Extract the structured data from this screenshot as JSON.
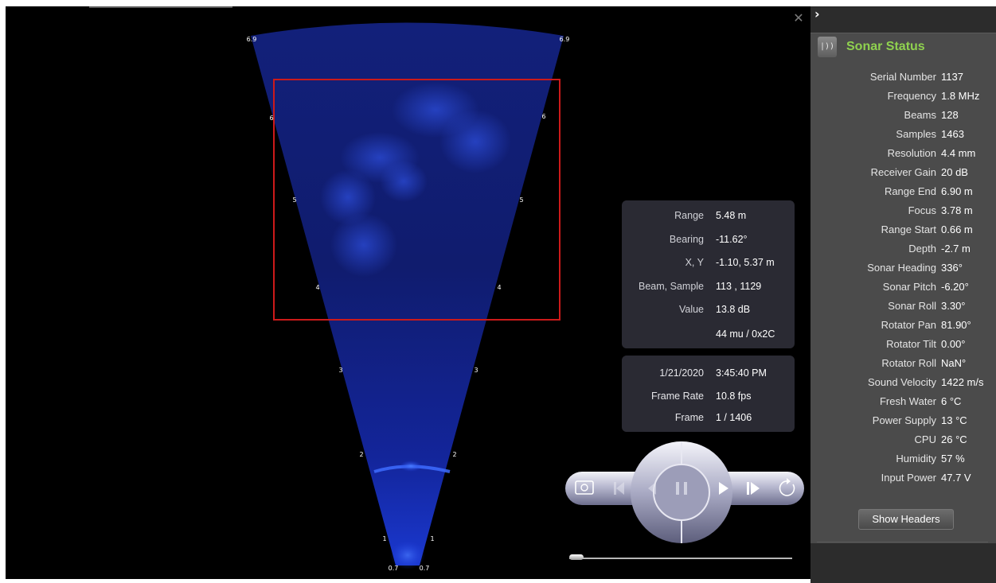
{
  "viewer": {
    "close_icon": "close-icon",
    "range_labels": {
      "top": "6.9",
      "r6": "6",
      "r5": "5",
      "r4": "4",
      "r3": "3",
      "r2": "2",
      "r1": "1",
      "bottom": "0.7"
    },
    "colors": {
      "sonar": "#1a2fc8",
      "roi": "#cc1a1a"
    }
  },
  "cursor_info": {
    "rows": [
      {
        "label": "Range",
        "value": "5.48 m"
      },
      {
        "label": "Bearing",
        "value": "-11.62°"
      },
      {
        "label": "X, Y",
        "value": "-1.10, 5.37 m"
      },
      {
        "label": "Beam, Sample",
        "value": "113 , 1129"
      },
      {
        "label": "Value",
        "value": "13.8 dB"
      },
      {
        "label": "",
        "value": "44 mu / 0x2C"
      }
    ]
  },
  "playback_info": {
    "date": "1/21/2020",
    "time": "3:45:40 PM",
    "frame_rate_label": "Frame Rate",
    "frame_rate": "10.8 fps",
    "frame_label": "Frame",
    "frame": "1 / 1406"
  },
  "controls": {
    "snapshot_icon": "camera-icon",
    "step_back_icon": "step-back-icon",
    "reverse_icon": "reverse-icon",
    "pause_icon": "pause-icon",
    "play_icon": "play-icon",
    "step_forward_icon": "step-forward-icon",
    "loop_icon": "loop-icon",
    "scrubber_progress": 0.0
  },
  "status_panel": {
    "chevron": "›",
    "title": "Sonar Status",
    "icon": "sonar-icon",
    "title_color": "#8fd14f",
    "rows": [
      {
        "label": "Serial Number",
        "value": "1137"
      },
      {
        "label": "Frequency",
        "value": "1.8 MHz"
      },
      {
        "label": "Beams",
        "value": "128"
      },
      {
        "label": "Samples",
        "value": "1463"
      },
      {
        "label": "Resolution",
        "value": "4.4 mm"
      },
      {
        "label": "Receiver Gain",
        "value": "20 dB"
      },
      {
        "label": "Range End",
        "value": "6.90 m"
      },
      {
        "label": "Focus",
        "value": "3.78 m"
      },
      {
        "label": "Range Start",
        "value": "0.66 m"
      },
      {
        "label": "Depth",
        "value": "-2.7 m"
      },
      {
        "label": "Sonar Heading",
        "value": "336°"
      },
      {
        "label": "Sonar Pitch",
        "value": "-6.20°"
      },
      {
        "label": "Sonar Roll",
        "value": "3.30°"
      },
      {
        "label": "Rotator Pan",
        "value": "81.90°"
      },
      {
        "label": "Rotator Tilt",
        "value": "0.00°"
      },
      {
        "label": "Rotator Roll",
        "value": "NaN°"
      },
      {
        "label": "Sound Velocity",
        "value": "1422 m/s"
      },
      {
        "label": "Fresh Water",
        "value": "6 °C"
      },
      {
        "label": "Power Supply",
        "value": "13 °C"
      },
      {
        "label": "CPU",
        "value": "26 °C"
      },
      {
        "label": "Humidity",
        "value": "57 %"
      },
      {
        "label": "Input Power",
        "value": "47.7 V"
      }
    ],
    "show_headers_label": "Show Headers"
  }
}
